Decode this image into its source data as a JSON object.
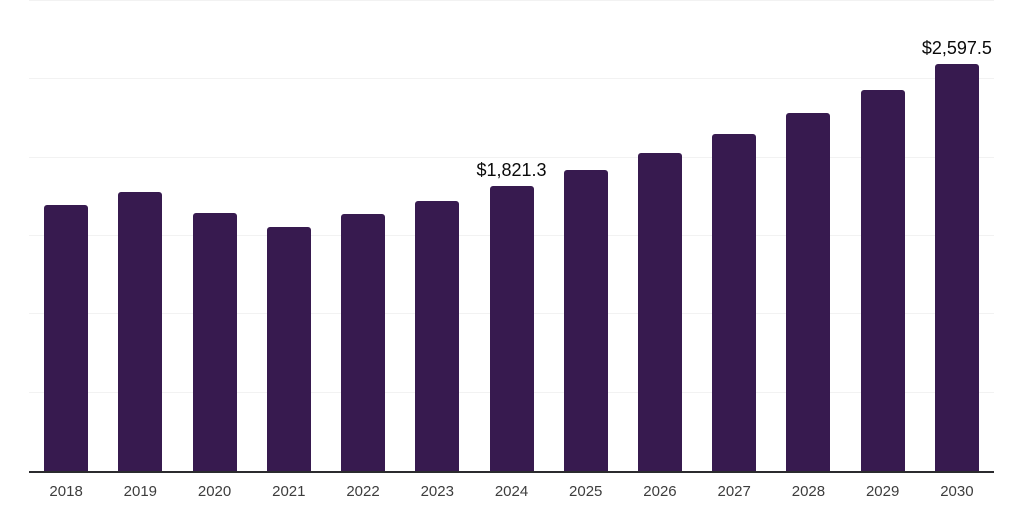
{
  "chart_data": {
    "type": "bar",
    "title": "",
    "xlabel": "",
    "ylabel": "",
    "categories": [
      "2018",
      "2019",
      "2020",
      "2021",
      "2022",
      "2023",
      "2024",
      "2025",
      "2026",
      "2027",
      "2028",
      "2029",
      "2030"
    ],
    "values": [
      1700,
      1783,
      1649,
      1560,
      1643,
      1726,
      1821.3,
      1923,
      2031,
      2152,
      2286,
      2432,
      2597.5
    ],
    "data_labels": [
      "",
      "",
      "",
      "",
      "",
      "",
      "$1,821.3",
      "",
      "",
      "",
      "",
      "",
      "$2,597.5"
    ],
    "ylim": [
      0,
      3000
    ],
    "gridline_step": 500,
    "grid": true,
    "legend": "none",
    "colors": {
      "bar": "#371a4f",
      "gridline": "#f2f2f2",
      "axis_line": "#2b2b2e",
      "tick_label": "#3d3d3d",
      "data_label": "#0a0a0a",
      "background": "#ffffff"
    }
  }
}
